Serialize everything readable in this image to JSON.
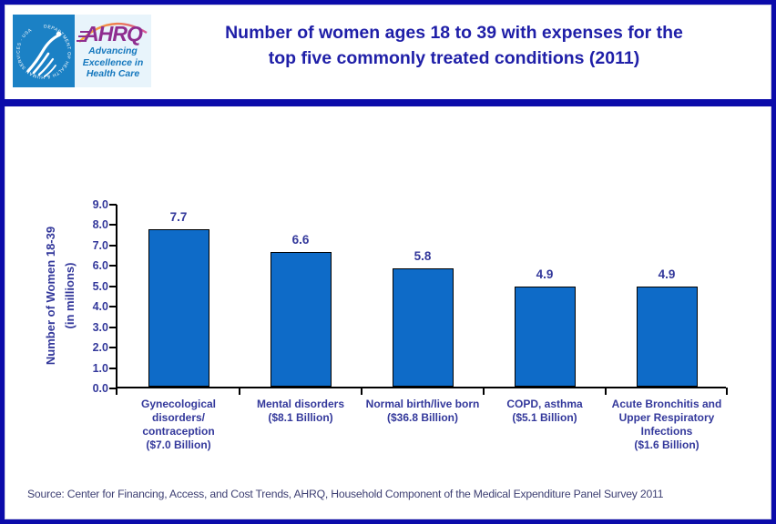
{
  "header": {
    "logo": {
      "seal_ring_text": "DEPARTMENT OF HEALTH & HUMAN SERVICES · USA",
      "ahrq_acronym": "AHRQ",
      "ahrq_tagline": "Advancing\nExcellence in\nHealth Care"
    },
    "title": "Number of women ages 18 to 39 with expenses for the\ntop five commonly treated conditions (2011)"
  },
  "chart_data": {
    "type": "bar",
    "title": "Number of women ages 18 to 39 with expenses for the top five commonly treated conditions (2011)",
    "categories": [
      "Gynecological\ndisorders/\ncontraception\n($7.0 Billion)",
      "Mental disorders\n($8.1 Billion)",
      "Normal birth/live born\n($36.8 Billion)",
      "COPD, asthma\n($5.1 Billion)",
      "Acute Bronchitis and\nUpper Respiratory\nInfections\n($1.6 Billion)"
    ],
    "values": [
      7.7,
      6.6,
      5.8,
      4.9,
      4.9
    ],
    "xlabel": "",
    "ylabel": "Number of Women 18-39\n(in millions)",
    "ylim": [
      0,
      9
    ],
    "ytick_step": 1,
    "ytick_decimals": 1,
    "grid": false,
    "legend": false,
    "bar_color": "#0e6bc8",
    "bar_border_color": "#000000",
    "label_color": "#33389b"
  },
  "footer": {
    "source": "Source: Center for Financing, Access, and Cost Trends, AHRQ, Household Component of the Medical Expenditure Panel Survey 2011"
  },
  "colors": {
    "page_border": "#0b0baa",
    "divider_band": "#0b0baa",
    "title_text": "#1f1fa8",
    "seal_background": "#1b81c5",
    "ahrq_background": "#e8f4fb",
    "ahrq_purple": "#8e2d8f",
    "tagline_blue": "#1477bd",
    "source_text": "#3c3e72"
  }
}
